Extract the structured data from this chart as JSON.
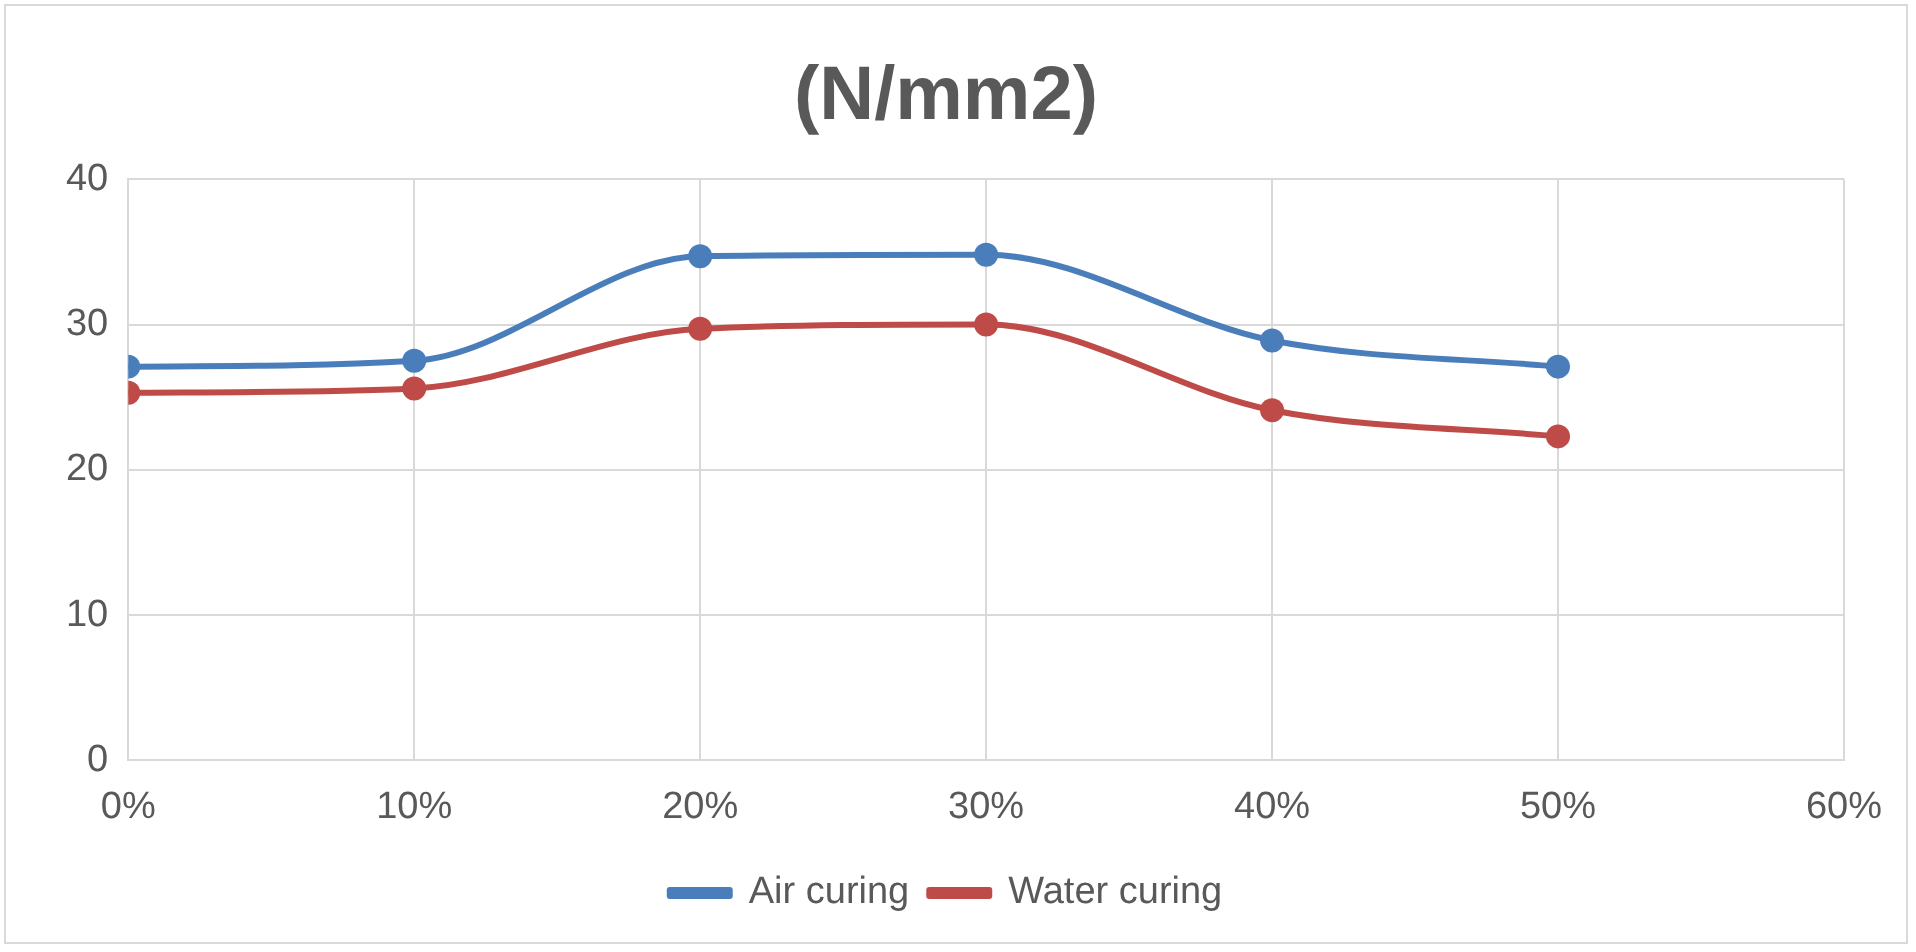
{
  "chart_data": {
    "type": "line",
    "title": "(N/mm2)",
    "x": [
      0,
      10,
      20,
      30,
      40,
      50
    ],
    "series": [
      {
        "name": "Air curing",
        "color": "#4a7ebb",
        "values": [
          27.1,
          27.5,
          34.7,
          34.8,
          28.9,
          27.1
        ]
      },
      {
        "name": "Water curing",
        "color": "#be4b48",
        "values": [
          25.3,
          25.6,
          29.7,
          30.0,
          24.1,
          22.3
        ]
      }
    ],
    "xlim": [
      0,
      60
    ],
    "xticks": [
      {
        "value": 0,
        "label": "0%"
      },
      {
        "value": 10,
        "label": "10%"
      },
      {
        "value": 20,
        "label": "20%"
      },
      {
        "value": 30,
        "label": "30%"
      },
      {
        "value": 40,
        "label": "40%"
      },
      {
        "value": 50,
        "label": "50%"
      },
      {
        "value": 60,
        "label": "60%"
      }
    ],
    "ylim": [
      0,
      40
    ],
    "yticks": [
      0,
      10,
      20,
      30,
      40
    ],
    "grid": true,
    "legend": "bottom",
    "marker": "circle",
    "line_style": "solid"
  }
}
